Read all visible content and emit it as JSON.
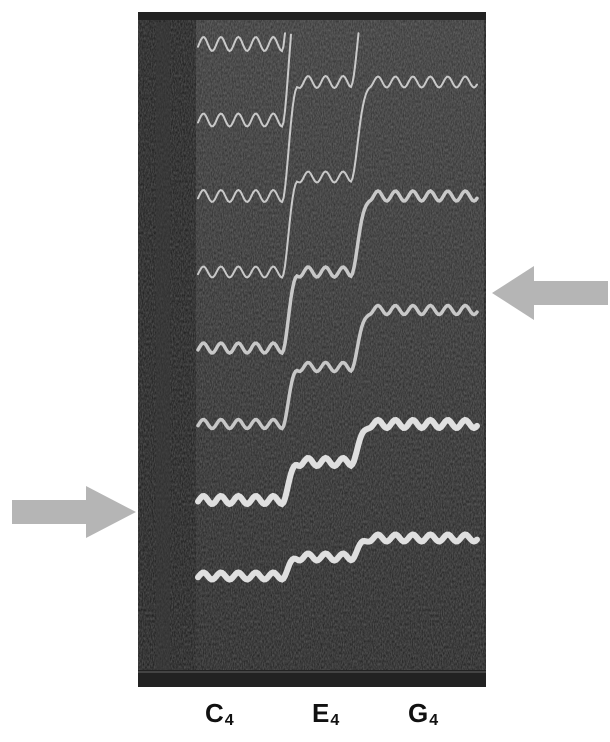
{
  "figure": {
    "notes": [
      {
        "name": "C",
        "octave": "4"
      },
      {
        "name": "E",
        "octave": "4"
      },
      {
        "name": "G",
        "octave": "4"
      }
    ],
    "colors": {
      "background": "#1c1c1c",
      "harmonic": "#e8e8e8",
      "arrow": "#b5b5b5"
    }
  }
}
